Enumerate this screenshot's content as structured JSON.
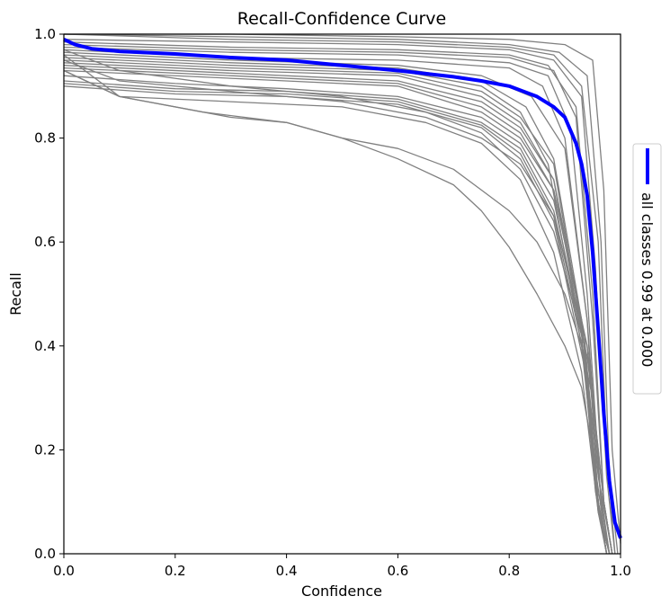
{
  "chart_data": {
    "type": "line",
    "title": "Recall-Confidence Curve",
    "xlabel": "Confidence",
    "ylabel": "Recall",
    "xlim": [
      0.0,
      1.0
    ],
    "ylim": [
      0.0,
      1.0
    ],
    "xticks": [
      "0.0",
      "0.2",
      "0.4",
      "0.6",
      "0.8",
      "1.0"
    ],
    "yticks": [
      "0.0",
      "0.2",
      "0.4",
      "0.6",
      "0.8",
      "1.0"
    ],
    "grid": false,
    "legend": {
      "placement": "right",
      "orientation": "vertical",
      "entries": [
        "all classes 0.99 at 0.000"
      ]
    },
    "colors": {
      "class_curves": "#808080",
      "all_classes": "#0000ff"
    },
    "series": [
      {
        "name": "all classes 0.99 at 0.000",
        "role": "all",
        "x": [
          0.0,
          0.02,
          0.05,
          0.1,
          0.2,
          0.3,
          0.4,
          0.5,
          0.6,
          0.7,
          0.75,
          0.8,
          0.85,
          0.88,
          0.9,
          0.92,
          0.93,
          0.94,
          0.95,
          0.96,
          0.97,
          0.98,
          0.99,
          1.0
        ],
        "y": [
          0.99,
          0.98,
          0.972,
          0.967,
          0.962,
          0.955,
          0.95,
          0.94,
          0.93,
          0.918,
          0.91,
          0.9,
          0.88,
          0.86,
          0.84,
          0.79,
          0.75,
          0.69,
          0.58,
          0.43,
          0.27,
          0.14,
          0.06,
          0.03
        ]
      },
      {
        "role": "class",
        "x": [
          0.0,
          0.3,
          0.6,
          0.8,
          0.88,
          0.93,
          0.96,
          0.975,
          0.99
        ],
        "y": [
          1.0,
          0.99,
          0.985,
          0.975,
          0.96,
          0.9,
          0.6,
          0.2,
          0.0
        ]
      },
      {
        "role": "class",
        "x": [
          0.0,
          0.3,
          0.6,
          0.8,
          0.89,
          0.94,
          0.965,
          0.98,
          0.995
        ],
        "y": [
          1.0,
          0.995,
          0.99,
          0.98,
          0.965,
          0.92,
          0.6,
          0.15,
          0.0
        ]
      },
      {
        "role": "class",
        "x": [
          0.0,
          0.3,
          0.6,
          0.8,
          0.9,
          0.95,
          0.97,
          0.985,
          1.0
        ],
        "y": [
          1.0,
          1.0,
          0.995,
          0.99,
          0.98,
          0.95,
          0.7,
          0.2,
          0.02
        ]
      },
      {
        "role": "class",
        "x": [
          0.0,
          0.3,
          0.6,
          0.8,
          0.88,
          0.93,
          0.955,
          0.975,
          0.99
        ],
        "y": [
          0.99,
          0.985,
          0.98,
          0.97,
          0.95,
          0.88,
          0.55,
          0.15,
          0.0
        ]
      },
      {
        "role": "class",
        "x": [
          0.0,
          0.3,
          0.6,
          0.8,
          0.87,
          0.92,
          0.95,
          0.97,
          0.985
        ],
        "y": [
          0.985,
          0.975,
          0.97,
          0.96,
          0.94,
          0.86,
          0.5,
          0.1,
          0.0
        ]
      },
      {
        "role": "class",
        "x": [
          0.0,
          0.3,
          0.6,
          0.8,
          0.88,
          0.92,
          0.95,
          0.97,
          0.985
        ],
        "y": [
          0.98,
          0.97,
          0.965,
          0.955,
          0.93,
          0.84,
          0.45,
          0.1,
          0.0
        ]
      },
      {
        "role": "class",
        "x": [
          0.0,
          0.3,
          0.6,
          0.8,
          0.87,
          0.91,
          0.94,
          0.965,
          0.98
        ],
        "y": [
          0.975,
          0.965,
          0.96,
          0.945,
          0.92,
          0.82,
          0.5,
          0.1,
          0.0
        ]
      },
      {
        "role": "class",
        "x": [
          0.0,
          0.3,
          0.6,
          0.8,
          0.86,
          0.9,
          0.94,
          0.96,
          0.975
        ],
        "y": [
          0.97,
          0.955,
          0.95,
          0.935,
          0.9,
          0.8,
          0.45,
          0.1,
          0.0
        ]
      },
      {
        "role": "class",
        "x": [
          0.0,
          0.3,
          0.6,
          0.75,
          0.84,
          0.9,
          0.94,
          0.965,
          0.98
        ],
        "y": [
          0.965,
          0.95,
          0.94,
          0.92,
          0.88,
          0.78,
          0.45,
          0.1,
          0.0
        ]
      },
      {
        "role": "class",
        "x": [
          0.0,
          0.3,
          0.6,
          0.75,
          0.83,
          0.88,
          0.93,
          0.96,
          0.98
        ],
        "y": [
          0.96,
          0.945,
          0.935,
          0.91,
          0.86,
          0.76,
          0.45,
          0.1,
          0.0
        ]
      },
      {
        "role": "class",
        "x": [
          0.0,
          0.3,
          0.6,
          0.75,
          0.82,
          0.87,
          0.93,
          0.96,
          0.975
        ],
        "y": [
          0.955,
          0.94,
          0.93,
          0.9,
          0.85,
          0.75,
          0.4,
          0.1,
          0.0
        ]
      },
      {
        "role": "class",
        "x": [
          0.0,
          0.3,
          0.6,
          0.75,
          0.82,
          0.88,
          0.935,
          0.96,
          0.985
        ],
        "y": [
          0.95,
          0.935,
          0.925,
          0.89,
          0.84,
          0.75,
          0.4,
          0.15,
          0.0
        ]
      },
      {
        "role": "class",
        "x": [
          0.0,
          0.3,
          0.6,
          0.75,
          0.82,
          0.88,
          0.93,
          0.955,
          0.975
        ],
        "y": [
          0.945,
          0.93,
          0.92,
          0.88,
          0.83,
          0.72,
          0.42,
          0.12,
          0.0
        ]
      },
      {
        "role": "class",
        "x": [
          0.0,
          0.3,
          0.6,
          0.75,
          0.82,
          0.88,
          0.93,
          0.96,
          0.975
        ],
        "y": [
          0.94,
          0.925,
          0.91,
          0.87,
          0.82,
          0.72,
          0.45,
          0.1,
          0.0
        ]
      },
      {
        "role": "class",
        "x": [
          0.0,
          0.3,
          0.6,
          0.75,
          0.82,
          0.88,
          0.94,
          0.96,
          0.98
        ],
        "y": [
          0.935,
          0.92,
          0.905,
          0.86,
          0.81,
          0.7,
          0.4,
          0.15,
          0.0
        ]
      },
      {
        "role": "class",
        "x": [
          0.0,
          0.3,
          0.6,
          0.75,
          0.82,
          0.88,
          0.935,
          0.96,
          0.975
        ],
        "y": [
          0.93,
          0.915,
          0.9,
          0.85,
          0.8,
          0.7,
          0.42,
          0.1,
          0.0
        ]
      },
      {
        "role": "class",
        "x": [
          0.0,
          0.2,
          0.4,
          0.6,
          0.75,
          0.82,
          0.88,
          0.935,
          0.96,
          0.975
        ],
        "y": [
          0.92,
          0.905,
          0.895,
          0.88,
          0.84,
          0.79,
          0.68,
          0.4,
          0.1,
          0.0
        ]
      },
      {
        "role": "class",
        "x": [
          0.0,
          0.2,
          0.4,
          0.6,
          0.75,
          0.82,
          0.88,
          0.935,
          0.96,
          0.975
        ],
        "y": [
          0.91,
          0.895,
          0.89,
          0.875,
          0.83,
          0.78,
          0.66,
          0.4,
          0.1,
          0.0
        ]
      },
      {
        "role": "class",
        "x": [
          0.0,
          0.2,
          0.4,
          0.6,
          0.75,
          0.82,
          0.88,
          0.935,
          0.96,
          0.975
        ],
        "y": [
          0.905,
          0.89,
          0.885,
          0.87,
          0.825,
          0.77,
          0.65,
          0.38,
          0.1,
          0.0
        ]
      },
      {
        "role": "class",
        "x": [
          0.0,
          0.2,
          0.4,
          0.6,
          0.75,
          0.82,
          0.88,
          0.935,
          0.96,
          0.975
        ],
        "y": [
          0.9,
          0.885,
          0.88,
          0.865,
          0.82,
          0.76,
          0.64,
          0.36,
          0.08,
          0.0
        ]
      },
      {
        "role": "class",
        "x": [
          0.0,
          0.1,
          0.3,
          0.5,
          0.65,
          0.75,
          0.82,
          0.88,
          0.94,
          0.97,
          0.985
        ],
        "y": [
          0.95,
          0.91,
          0.89,
          0.87,
          0.84,
          0.8,
          0.75,
          0.65,
          0.4,
          0.1,
          0.0
        ]
      },
      {
        "role": "class",
        "x": [
          0.0,
          0.1,
          0.3,
          0.5,
          0.65,
          0.75,
          0.82,
          0.88,
          0.94,
          0.97,
          0.985
        ],
        "y": [
          0.97,
          0.93,
          0.9,
          0.88,
          0.85,
          0.81,
          0.74,
          0.62,
          0.38,
          0.1,
          0.0
        ]
      },
      {
        "role": "class",
        "x": [
          0.0,
          0.1,
          0.3,
          0.5,
          0.65,
          0.75,
          0.82,
          0.88,
          0.93,
          0.96,
          0.98
        ],
        "y": [
          0.93,
          0.88,
          0.87,
          0.86,
          0.83,
          0.79,
          0.72,
          0.58,
          0.35,
          0.08,
          0.0
        ]
      },
      {
        "role": "class",
        "x": [
          0.0,
          0.1,
          0.25,
          0.4,
          0.5,
          0.6,
          0.7,
          0.75,
          0.8,
          0.85,
          0.9,
          0.93,
          0.95,
          0.97,
          0.985
        ],
        "y": [
          0.93,
          0.88,
          0.85,
          0.83,
          0.8,
          0.78,
          0.74,
          0.7,
          0.66,
          0.6,
          0.5,
          0.4,
          0.3,
          0.1,
          0.0
        ]
      },
      {
        "role": "class",
        "x": [
          0.0,
          0.1,
          0.2,
          0.3,
          0.4,
          0.5,
          0.6,
          0.7,
          0.75,
          0.8,
          0.85,
          0.9,
          0.93,
          0.95,
          0.97,
          0.98
        ],
        "y": [
          0.96,
          0.88,
          0.86,
          0.84,
          0.83,
          0.8,
          0.76,
          0.71,
          0.66,
          0.59,
          0.5,
          0.4,
          0.32,
          0.2,
          0.05,
          0.0
        ]
      }
    ]
  }
}
